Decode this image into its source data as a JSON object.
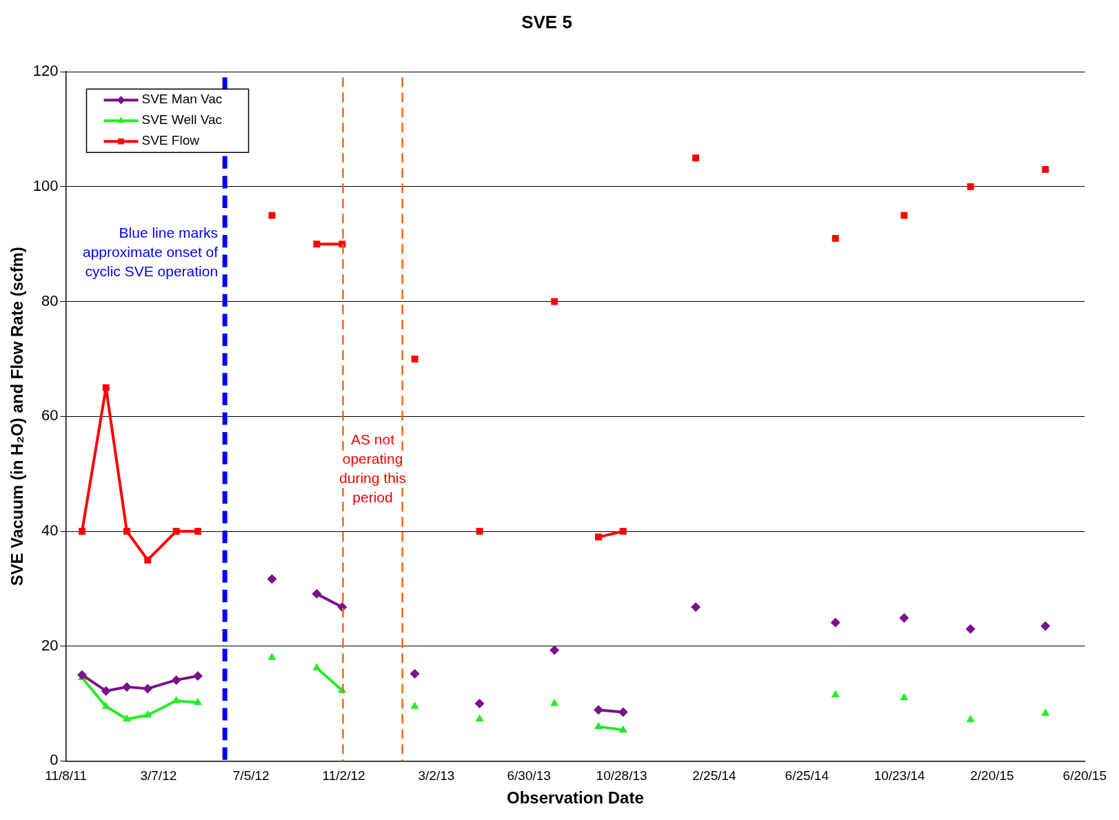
{
  "chart_data": {
    "type": "line",
    "title": "SVE 5",
    "xlabel": "Observation Date",
    "ylabel": "SVE Vacuum (in H₂O) and Flow Rate (scfm)",
    "x": [
      "2011-11-29",
      "2011-12-30",
      "2012-01-26",
      "2012-02-22",
      "2012-03-30",
      "2012-04-27",
      "2012-06-15",
      "2012-08-01",
      "2012-09-01",
      "2012-09-28",
      "2012-10-31",
      "2012-12-15",
      "2013-02-02",
      "2013-03-15",
      "2013-04-27",
      "2013-06-01",
      "2013-08-02",
      "2013-09-01",
      "2013-09-28",
      "2013-10-30",
      "2013-12-15",
      "2014-02-01",
      "2014-05-01",
      "2014-08-01",
      "2014-09-15",
      "2014-10-29",
      "2014-12-15",
      "2015-01-23",
      "2015-03-15",
      "2015-04-30"
    ],
    "series": [
      {
        "name": "SVE Man Vac",
        "color": "#7b0f8c",
        "marker": "diamond",
        "values": [
          15,
          12.2,
          12.9,
          12.6,
          14.1,
          14.8,
          null,
          31.7,
          null,
          29.1,
          26.8,
          null,
          15.2,
          null,
          10,
          null,
          19.3,
          null,
          8.9,
          8.5,
          null,
          26.8,
          null,
          24.1,
          null,
          24.9,
          null,
          23,
          null,
          23.5
        ]
      },
      {
        "name": "SVE Well Vac",
        "color": "#22ee22",
        "marker": "triangle",
        "values": [
          14.5,
          9.5,
          7.3,
          8,
          10.5,
          10.2,
          null,
          18,
          null,
          16.2,
          12.3,
          null,
          9.5,
          null,
          7.3,
          null,
          10,
          null,
          6,
          5.4,
          null,
          null,
          null,
          11.5,
          null,
          11,
          null,
          7.2,
          null,
          8.3
        ]
      },
      {
        "name": "SVE Flow",
        "color": "#ff0000",
        "marker": "square",
        "values": [
          40,
          65,
          40,
          35,
          40,
          40,
          null,
          95,
          null,
          90,
          90,
          null,
          70,
          null,
          40,
          null,
          80,
          null,
          39,
          40,
          null,
          105,
          null,
          91,
          null,
          95,
          null,
          100,
          null,
          103
        ]
      }
    ],
    "xlim": [
      "2011-11-08",
      "2015-06-20"
    ],
    "xticks": [
      {
        "value": "2011-11-08",
        "label": "11/8/11"
      },
      {
        "value": "2012-03-07",
        "label": "3/7/12"
      },
      {
        "value": "2012-07-05",
        "label": "7/5/12"
      },
      {
        "value": "2012-11-02",
        "label": "11/2/12"
      },
      {
        "value": "2013-03-02",
        "label": "3/2/13"
      },
      {
        "value": "2013-06-30",
        "label": "6/30/13"
      },
      {
        "value": "2013-10-28",
        "label": "10/28/13"
      },
      {
        "value": "2014-02-25",
        "label": "2/25/14"
      },
      {
        "value": "2014-06-25",
        "label": "6/25/14"
      },
      {
        "value": "2014-10-23",
        "label": "10/23/14"
      },
      {
        "value": "2015-02-20",
        "label": "2/20/15"
      },
      {
        "value": "2015-06-20",
        "label": "6/20/15"
      }
    ],
    "ylim": [
      0,
      120
    ],
    "yticks": [
      0,
      20,
      40,
      60,
      80,
      100,
      120
    ],
    "grid": "y",
    "legend": "top left",
    "ref_lines": [
      {
        "axis": "x",
        "value": "2012-06-01",
        "color": "#0000ff",
        "line_style": "dashed"
      },
      {
        "axis": "x",
        "value": "2012-11-01",
        "color": "#ff6600",
        "line_style": "dashed"
      },
      {
        "axis": "x",
        "value": "2013-01-17",
        "color": "#ff6600",
        "line_style": "dashed"
      }
    ],
    "annotations": [
      "Blue line marks\napproximate onset of\ncyclic SVE operation",
      "AS not\noperating\nduring this\nperiod"
    ]
  }
}
